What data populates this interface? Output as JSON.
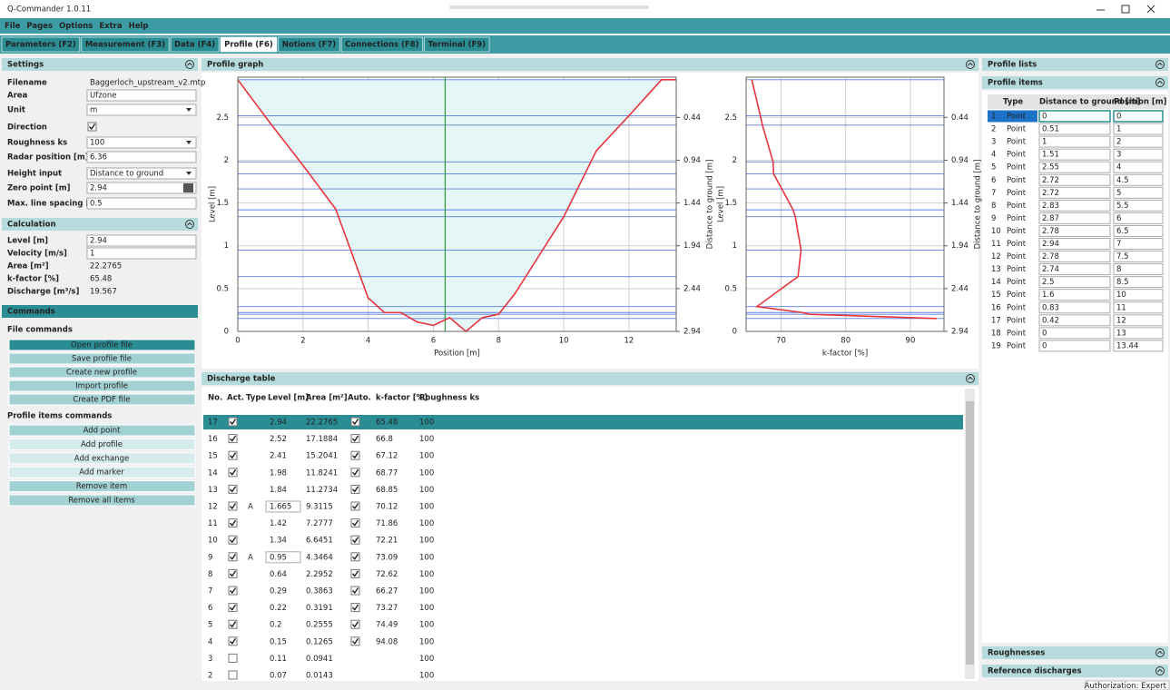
{
  "window": {
    "title": "Q-Commander 1.0.11"
  },
  "menu": [
    "File",
    "Pages",
    "Options",
    "Extra",
    "Help"
  ],
  "tabs": [
    "Parameters (F2)",
    "Measurement (F3)",
    "Data (F4)",
    "Profile (F6)",
    "Notions (F7)",
    "Connections (F8)",
    "Terminal (F9)"
  ],
  "active_tab": 3,
  "settings": {
    "title": "Settings",
    "fields": [
      {
        "label": "Filename",
        "value": "Baggerloch_upstream_v2.mtp"
      },
      {
        "label": "Area",
        "value": "Ufzone"
      },
      {
        "label": "Unit",
        "value": "m"
      },
      {
        "label": "Direction",
        "checked": true
      },
      {
        "label": "Roughness ks",
        "value": 100
      },
      {
        "label": "Radar position [m]",
        "value": 6.36
      },
      {
        "label": "Height input",
        "value": "Distance to ground"
      },
      {
        "label": "Zero point [m]",
        "value": 2.94
      },
      {
        "label": "Max. line spacing [m]",
        "value": 0.5
      }
    ]
  },
  "calculation": {
    "title": "Calculation",
    "fields": [
      {
        "label": "Level [m]",
        "value": 2.94
      },
      {
        "label": "Velocity [m/s]",
        "value": 1
      },
      {
        "label": "Area [m²]",
        "value": 22.2765
      },
      {
        "label": "k-factor [%]",
        "value": 65.48
      },
      {
        "label": "Discharge [m³/s]",
        "value": 19.567
      }
    ]
  },
  "commands": {
    "title": "Commands",
    "file_title": "File commands",
    "file_buttons": [
      "Open profile file",
      "Save profile file",
      "Create new profile",
      "Import profile",
      "Create PDF file"
    ],
    "active_button": 0,
    "items_title": "Profile items commands",
    "item_buttons": [
      {
        "label": "Add point",
        "enabled": true
      },
      {
        "label": "Add profile",
        "enabled": false
      },
      {
        "label": "Add exchange",
        "enabled": false
      },
      {
        "label": "Add marker",
        "enabled": false
      },
      {
        "label": "Remove item",
        "enabled": true
      },
      {
        "label": "Remove all items",
        "enabled": true
      }
    ]
  },
  "profile_graph": {
    "title": "Profile graph",
    "water_color": "#5b7fe0",
    "radar_color": "#2f9e3c",
    "charts": [
      {
        "type": "area",
        "xlabel": "Position [m]",
        "ylabel": "Level [m]",
        "y2label": "Distance to ground [m]",
        "xlim": [
          0,
          13.45
        ],
        "xticks": [
          0,
          2,
          4,
          6,
          8,
          10,
          12
        ],
        "ylim": [
          0,
          2.97
        ],
        "yticks": [
          0,
          0.5,
          1,
          1.5,
          2,
          2.5
        ],
        "y2lim": [
          2.94,
          -0.03
        ],
        "y2ticks": [
          0.44,
          0.94,
          1.44,
          1.94,
          2.44,
          2.94
        ],
        "color": "#e8343c",
        "fill": "#e4f6f6",
        "grid": true
      },
      {
        "type": "line",
        "xlabel": "k-factor [%]",
        "ylabel": "Level [m]",
        "y2label": "Distance to ground [m]",
        "xlim": [
          64.6,
          95.2
        ],
        "xticks": [
          70,
          80,
          90
        ],
        "ylim": [
          0,
          2.97
        ],
        "yticks": [
          0,
          0.5,
          1,
          1.5,
          2,
          2.5
        ],
        "y2lim": [
          2.94,
          -0.03
        ],
        "y2ticks": [
          0.44,
          0.94,
          1.44,
          1.94,
          2.44,
          2.94
        ],
        "color": "#e8343c",
        "grid": true
      }
    ]
  },
  "discharge_table": {
    "title": "Discharge table",
    "columns": [
      "No.",
      "Act.",
      "Type",
      "Level [m]",
      "Area [m²]",
      "Auto.",
      "k-factor [%]",
      "Roughness ks"
    ],
    "selected_row": 0,
    "rows": [
      {
        "no": 17,
        "act": true,
        "level": 2.94,
        "area": 22.2765,
        "auto": true,
        "k": 65.48,
        "ks": 100
      },
      {
        "no": 16,
        "act": true,
        "level": 2.52,
        "area": 17.1884,
        "auto": true,
        "k": 66.8,
        "ks": 100
      },
      {
        "no": 15,
        "act": true,
        "level": 2.41,
        "area": 15.2041,
        "auto": true,
        "k": 67.12,
        "ks": 100
      },
      {
        "no": 14,
        "act": true,
        "level": 1.98,
        "area": 11.8241,
        "auto": true,
        "k": 68.77,
        "ks": 100
      },
      {
        "no": 13,
        "act": true,
        "level": 1.84,
        "area": 11.2734,
        "auto": true,
        "k": 68.85,
        "ks": 100
      },
      {
        "no": 12,
        "act": true,
        "type": "A",
        "level": 1.665,
        "area": 9.3115,
        "auto": true,
        "k": 70.12,
        "ks": 100
      },
      {
        "no": 11,
        "act": true,
        "level": 1.42,
        "area": 7.2777,
        "auto": true,
        "k": 71.86,
        "ks": 100
      },
      {
        "no": 10,
        "act": true,
        "level": 1.34,
        "area": 6.6451,
        "auto": true,
        "k": 72.21,
        "ks": 100
      },
      {
        "no": 9,
        "act": true,
        "type": "A",
        "level": 0.95,
        "area": 4.3464,
        "auto": true,
        "k": 73.09,
        "ks": 100
      },
      {
        "no": 8,
        "act": true,
        "level": 0.64,
        "area": 2.2952,
        "auto": true,
        "k": 72.62,
        "ks": 100
      },
      {
        "no": 7,
        "act": true,
        "level": 0.29,
        "area": 0.3863,
        "auto": true,
        "k": 66.27,
        "ks": 100
      },
      {
        "no": 6,
        "act": true,
        "level": 0.22,
        "area": 0.3191,
        "auto": true,
        "k": 73.27,
        "ks": 100
      },
      {
        "no": 5,
        "act": true,
        "level": 0.2,
        "area": 0.2555,
        "auto": true,
        "k": 74.49,
        "ks": 100
      },
      {
        "no": 4,
        "act": true,
        "level": 0.15,
        "area": 0.1265,
        "auto": true,
        "k": 94.08,
        "ks": 100
      },
      {
        "no": 3,
        "act": false,
        "level": 0.11,
        "area": 0.0941,
        "ks": 100
      },
      {
        "no": 2,
        "act": false,
        "level": 0.07,
        "area": 0.0143,
        "ks": 100
      }
    ]
  },
  "profile_lists": {
    "title": "Profile lists"
  },
  "profile_items": {
    "title": "Profile items",
    "columns": [
      "Type",
      "Distance to ground [m]",
      "Position [m]"
    ],
    "selected_row": 0,
    "rows": [
      {
        "no": 1,
        "type": "Point",
        "distance": 0,
        "position": 0
      },
      {
        "no": 2,
        "type": "Point",
        "distance": 0.51,
        "position": 1
      },
      {
        "no": 3,
        "type": "Point",
        "distance": 1,
        "position": 2
      },
      {
        "no": 4,
        "type": "Point",
        "distance": 1.51,
        "position": 3
      },
      {
        "no": 5,
        "type": "Point",
        "distance": 2.55,
        "position": 4
      },
      {
        "no": 6,
        "type": "Point",
        "distance": 2.72,
        "position": 4.5
      },
      {
        "no": 7,
        "type": "Point",
        "distance": 2.72,
        "position": 5
      },
      {
        "no": 8,
        "type": "Point",
        "distance": 2.83,
        "position": 5.5
      },
      {
        "no": 9,
        "type": "Point",
        "distance": 2.87,
        "position": 6
      },
      {
        "no": 10,
        "type": "Point",
        "distance": 2.78,
        "position": 6.5
      },
      {
        "no": 11,
        "type": "Point",
        "distance": 2.94,
        "position": 7
      },
      {
        "no": 12,
        "type": "Point",
        "distance": 2.78,
        "position": 7.5
      },
      {
        "no": 13,
        "type": "Point",
        "distance": 2.74,
        "position": 8
      },
      {
        "no": 14,
        "type": "Point",
        "distance": 2.5,
        "position": 8.5
      },
      {
        "no": 15,
        "type": "Point",
        "distance": 1.6,
        "position": 10
      },
      {
        "no": 16,
        "type": "Point",
        "distance": 0.83,
        "position": 11
      },
      {
        "no": 17,
        "type": "Point",
        "distance": 0.42,
        "position": 12
      },
      {
        "no": 18,
        "type": "Point",
        "distance": 0,
        "position": 13
      },
      {
        "no": 19,
        "type": "Point",
        "distance": 0,
        "position": 13.44
      }
    ]
  },
  "roughnesses": {
    "title": "Roughnesses"
  },
  "reference_discharges": {
    "title": "Reference discharges"
  },
  "status": "Authorization: Expert"
}
